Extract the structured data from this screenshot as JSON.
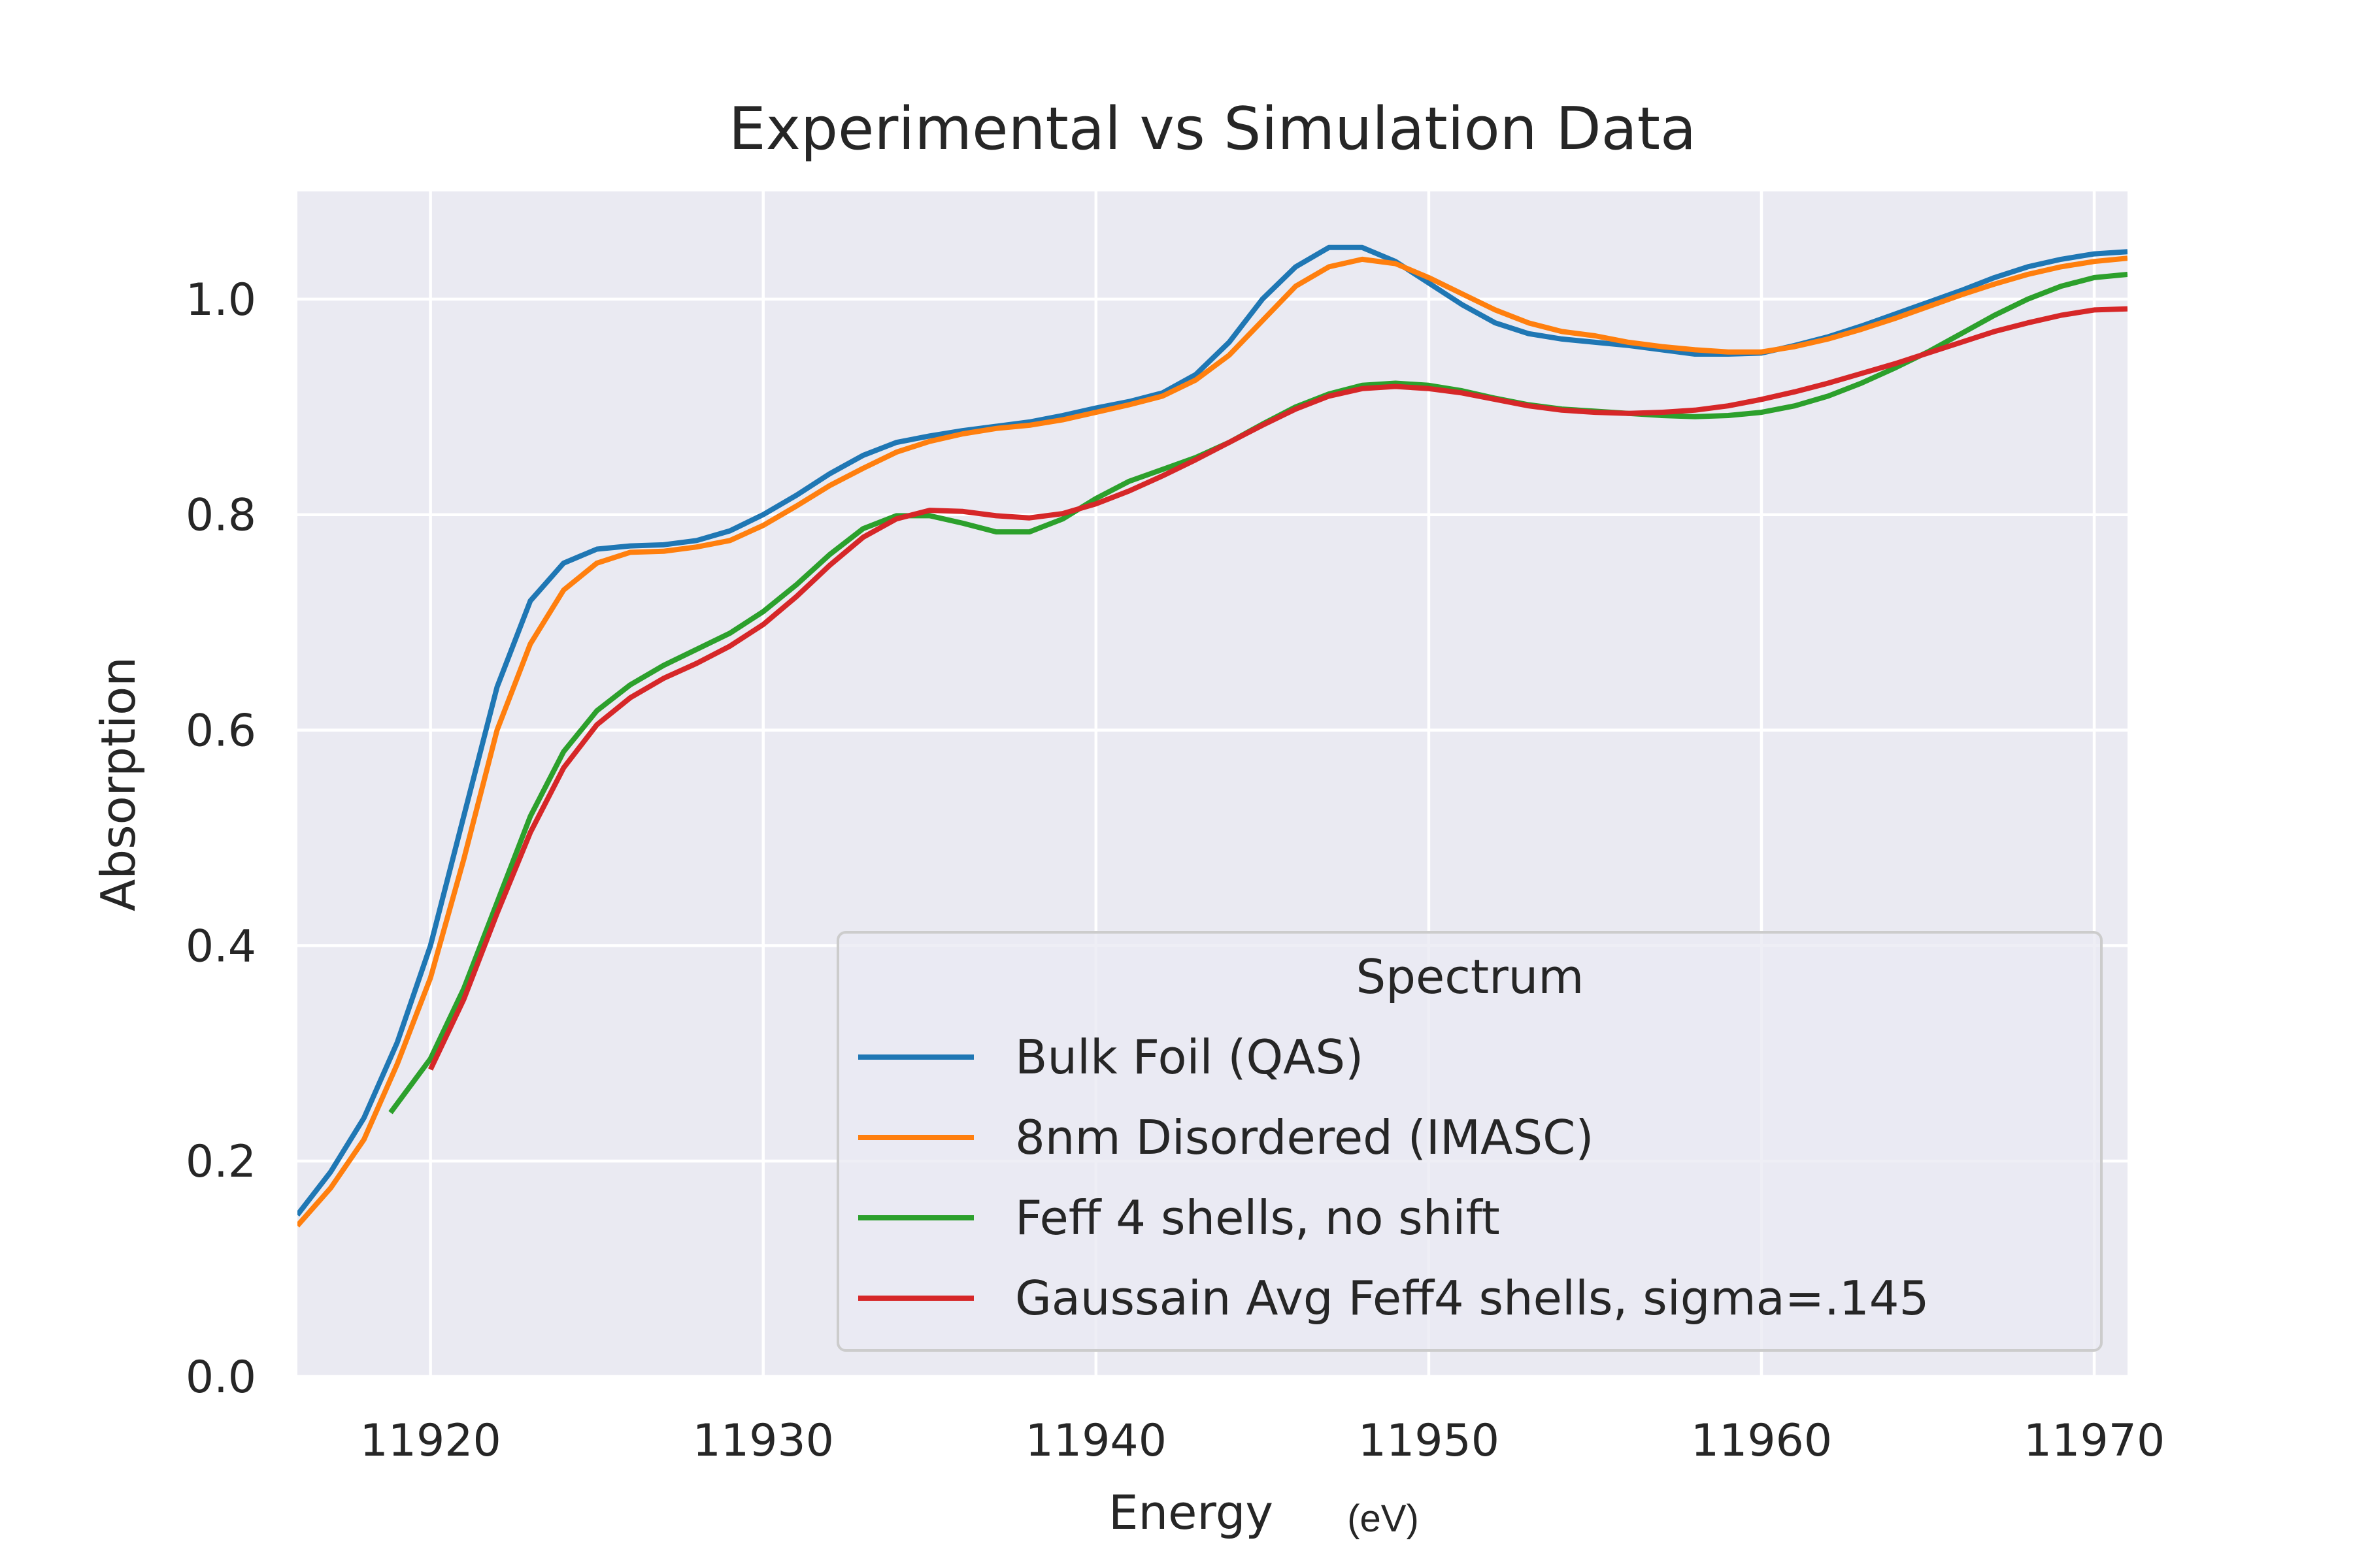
{
  "chart_data": {
    "type": "line",
    "title": "Experimental vs Simulation Data",
    "xlabel": "Energy",
    "xunit": "(eV)",
    "ylabel": "Absorption",
    "xlim": [
      11916,
      11971
    ],
    "ylim": [
      0.0,
      1.1
    ],
    "xticks": [
      11920,
      11930,
      11940,
      11950,
      11960,
      11970
    ],
    "yticks": [
      0.0,
      0.2,
      0.4,
      0.6,
      0.8,
      1.0
    ],
    "xtick_labels": [
      "11920",
      "11930",
      "11940",
      "11950",
      "11960",
      "11970"
    ],
    "ytick_labels": [
      "0.0",
      "0.2",
      "0.4",
      "0.6",
      "0.8",
      "1.0"
    ],
    "grid": true,
    "background": "#eaeaf2",
    "legend": {
      "title": "Spectrum",
      "position": "lower-right"
    },
    "series": [
      {
        "name": "Bulk Foil (QAS)",
        "color": "#1f77b4",
        "points": [
          [
            11916,
            0.15
          ],
          [
            11917,
            0.19
          ],
          [
            11918,
            0.24
          ],
          [
            11919,
            0.31
          ],
          [
            11920,
            0.4
          ],
          [
            11921,
            0.52
          ],
          [
            11922,
            0.64
          ],
          [
            11923,
            0.72
          ],
          [
            11924,
            0.755
          ],
          [
            11925,
            0.768
          ],
          [
            11926,
            0.771
          ],
          [
            11927,
            0.772
          ],
          [
            11928,
            0.776
          ],
          [
            11929,
            0.785
          ],
          [
            11930,
            0.8
          ],
          [
            11931,
            0.818
          ],
          [
            11932,
            0.838
          ],
          [
            11933,
            0.855
          ],
          [
            11934,
            0.867
          ],
          [
            11935,
            0.873
          ],
          [
            11936,
            0.878
          ],
          [
            11937,
            0.882
          ],
          [
            11938,
            0.886
          ],
          [
            11939,
            0.892
          ],
          [
            11940,
            0.899
          ],
          [
            11941,
            0.905
          ],
          [
            11942,
            0.913
          ],
          [
            11943,
            0.93
          ],
          [
            11944,
            0.96
          ],
          [
            11945,
            1.0
          ],
          [
            11946,
            1.03
          ],
          [
            11947,
            1.048
          ],
          [
            11948,
            1.048
          ],
          [
            11949,
            1.035
          ],
          [
            11950,
            1.015
          ],
          [
            11951,
            0.995
          ],
          [
            11952,
            0.978
          ],
          [
            11953,
            0.968
          ],
          [
            11954,
            0.963
          ],
          [
            11955,
            0.96
          ],
          [
            11956,
            0.957
          ],
          [
            11957,
            0.953
          ],
          [
            11958,
            0.949
          ],
          [
            11959,
            0.949
          ],
          [
            11960,
            0.95
          ],
          [
            11961,
            0.957
          ],
          [
            11962,
            0.965
          ],
          [
            11963,
            0.975
          ],
          [
            11964,
            0.986
          ],
          [
            11965,
            0.997
          ],
          [
            11966,
            1.008
          ],
          [
            11967,
            1.02
          ],
          [
            11968,
            1.03
          ],
          [
            11969,
            1.037
          ],
          [
            11970,
            1.042
          ],
          [
            11971,
            1.044
          ]
        ]
      },
      {
        "name": "8nm Disordered (IMASC)",
        "color": "#ff7f0e",
        "points": [
          [
            11916,
            0.14
          ],
          [
            11917,
            0.175
          ],
          [
            11918,
            0.22
          ],
          [
            11919,
            0.29
          ],
          [
            11920,
            0.37
          ],
          [
            11921,
            0.48
          ],
          [
            11922,
            0.6
          ],
          [
            11923,
            0.68
          ],
          [
            11924,
            0.73
          ],
          [
            11925,
            0.755
          ],
          [
            11926,
            0.765
          ],
          [
            11927,
            0.766
          ],
          [
            11928,
            0.77
          ],
          [
            11929,
            0.776
          ],
          [
            11930,
            0.79
          ],
          [
            11931,
            0.808
          ],
          [
            11932,
            0.827
          ],
          [
            11933,
            0.843
          ],
          [
            11934,
            0.858
          ],
          [
            11935,
            0.868
          ],
          [
            11936,
            0.875
          ],
          [
            11937,
            0.88
          ],
          [
            11938,
            0.883
          ],
          [
            11939,
            0.888
          ],
          [
            11940,
            0.895
          ],
          [
            11941,
            0.902
          ],
          [
            11942,
            0.91
          ],
          [
            11943,
            0.925
          ],
          [
            11944,
            0.948
          ],
          [
            11945,
            0.98
          ],
          [
            11946,
            1.012
          ],
          [
            11947,
            1.03
          ],
          [
            11948,
            1.037
          ],
          [
            11949,
            1.033
          ],
          [
            11950,
            1.02
          ],
          [
            11951,
            1.005
          ],
          [
            11952,
            0.99
          ],
          [
            11953,
            0.978
          ],
          [
            11954,
            0.97
          ],
          [
            11955,
            0.966
          ],
          [
            11956,
            0.96
          ],
          [
            11957,
            0.956
          ],
          [
            11958,
            0.953
          ],
          [
            11959,
            0.951
          ],
          [
            11960,
            0.951
          ],
          [
            11961,
            0.956
          ],
          [
            11962,
            0.963
          ],
          [
            11963,
            0.972
          ],
          [
            11964,
            0.982
          ],
          [
            11965,
            0.993
          ],
          [
            11966,
            1.004
          ],
          [
            11967,
            1.014
          ],
          [
            11968,
            1.023
          ],
          [
            11969,
            1.03
          ],
          [
            11970,
            1.035
          ],
          [
            11971,
            1.038
          ]
        ]
      },
      {
        "name": "Feff 4 shells, no shift",
        "color": "#2ca02c",
        "points": [
          [
            11918.8,
            0.245
          ],
          [
            11920,
            0.295
          ],
          [
            11921,
            0.36
          ],
          [
            11922,
            0.44
          ],
          [
            11923,
            0.52
          ],
          [
            11924,
            0.58
          ],
          [
            11925,
            0.618
          ],
          [
            11926,
            0.642
          ],
          [
            11927,
            0.66
          ],
          [
            11928,
            0.675
          ],
          [
            11929,
            0.69
          ],
          [
            11930,
            0.71
          ],
          [
            11931,
            0.735
          ],
          [
            11932,
            0.763
          ],
          [
            11933,
            0.787
          ],
          [
            11934,
            0.799
          ],
          [
            11935,
            0.799
          ],
          [
            11936,
            0.792
          ],
          [
            11937,
            0.784
          ],
          [
            11938,
            0.784
          ],
          [
            11939,
            0.796
          ],
          [
            11940,
            0.815
          ],
          [
            11941,
            0.831
          ],
          [
            11942,
            0.842
          ],
          [
            11943,
            0.853
          ],
          [
            11944,
            0.867
          ],
          [
            11945,
            0.884
          ],
          [
            11946,
            0.9
          ],
          [
            11947,
            0.912
          ],
          [
            11948,
            0.92
          ],
          [
            11949,
            0.922
          ],
          [
            11950,
            0.92
          ],
          [
            11951,
            0.915
          ],
          [
            11952,
            0.908
          ],
          [
            11953,
            0.902
          ],
          [
            11954,
            0.898
          ],
          [
            11955,
            0.896
          ],
          [
            11956,
            0.894
          ],
          [
            11957,
            0.892
          ],
          [
            11958,
            0.891
          ],
          [
            11959,
            0.892
          ],
          [
            11960,
            0.895
          ],
          [
            11961,
            0.901
          ],
          [
            11962,
            0.91
          ],
          [
            11963,
            0.922
          ],
          [
            11964,
            0.936
          ],
          [
            11965,
            0.951
          ],
          [
            11966,
            0.968
          ],
          [
            11967,
            0.985
          ],
          [
            11968,
            1.0
          ],
          [
            11969,
            1.012
          ],
          [
            11970,
            1.02
          ],
          [
            11971,
            1.023
          ]
        ]
      },
      {
        "name": "Gaussain Avg Feff4 shells, sigma=.145",
        "color": "#d62728",
        "points": [
          [
            11920,
            0.285
          ],
          [
            11921,
            0.35
          ],
          [
            11922,
            0.43
          ],
          [
            11923,
            0.505
          ],
          [
            11924,
            0.565
          ],
          [
            11925,
            0.605
          ],
          [
            11926,
            0.63
          ],
          [
            11927,
            0.648
          ],
          [
            11928,
            0.662
          ],
          [
            11929,
            0.678
          ],
          [
            11930,
            0.698
          ],
          [
            11931,
            0.724
          ],
          [
            11932,
            0.753
          ],
          [
            11933,
            0.779
          ],
          [
            11934,
            0.796
          ],
          [
            11935,
            0.804
          ],
          [
            11936,
            0.803
          ],
          [
            11937,
            0.799
          ],
          [
            11938,
            0.797
          ],
          [
            11939,
            0.801
          ],
          [
            11940,
            0.81
          ],
          [
            11941,
            0.822
          ],
          [
            11942,
            0.836
          ],
          [
            11943,
            0.851
          ],
          [
            11944,
            0.867
          ],
          [
            11945,
            0.883
          ],
          [
            11946,
            0.898
          ],
          [
            11947,
            0.91
          ],
          [
            11948,
            0.917
          ],
          [
            11949,
            0.919
          ],
          [
            11950,
            0.917
          ],
          [
            11951,
            0.913
          ],
          [
            11952,
            0.907
          ],
          [
            11953,
            0.901
          ],
          [
            11954,
            0.897
          ],
          [
            11955,
            0.895
          ],
          [
            11956,
            0.894
          ],
          [
            11957,
            0.895
          ],
          [
            11958,
            0.897
          ],
          [
            11959,
            0.901
          ],
          [
            11960,
            0.907
          ],
          [
            11961,
            0.914
          ],
          [
            11962,
            0.922
          ],
          [
            11963,
            0.931
          ],
          [
            11964,
            0.94
          ],
          [
            11965,
            0.95
          ],
          [
            11966,
            0.96
          ],
          [
            11967,
            0.97
          ],
          [
            11968,
            0.978
          ],
          [
            11969,
            0.985
          ],
          [
            11970,
            0.99
          ],
          [
            11971,
            0.991
          ]
        ]
      }
    ]
  }
}
